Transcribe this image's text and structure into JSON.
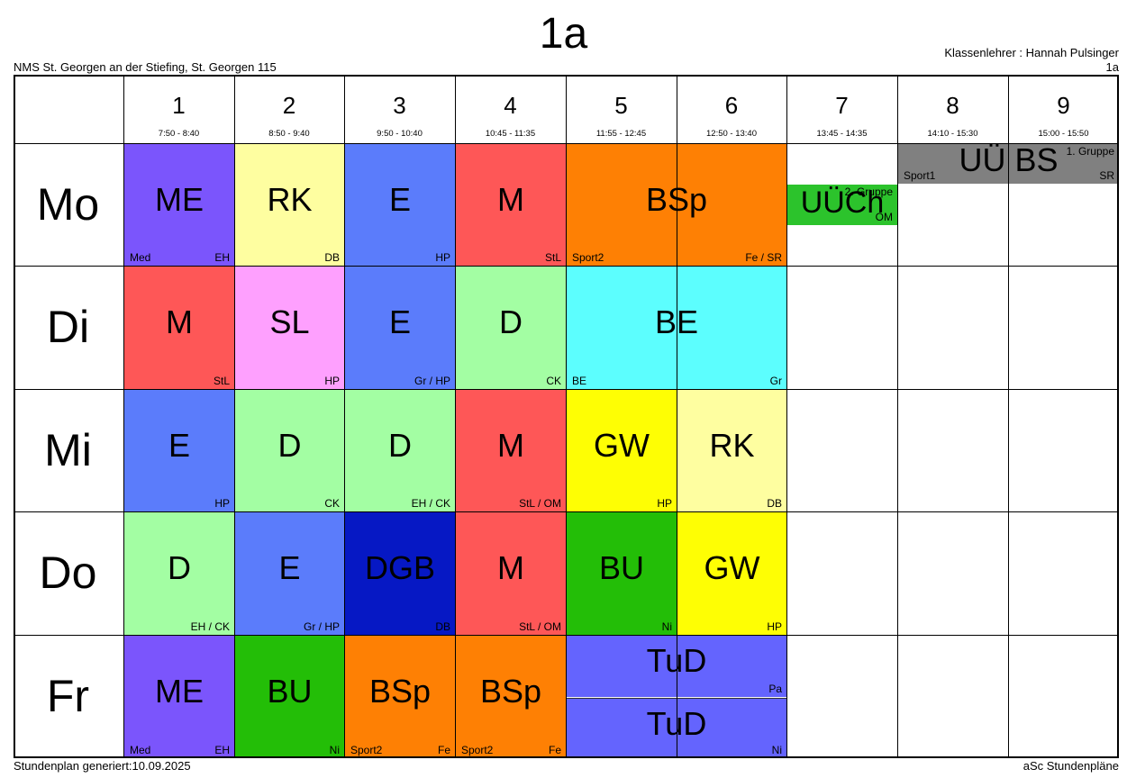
{
  "title": "1a",
  "school": "NMS St. Georgen an der Stiefing, St. Georgen 115",
  "teacher": "Klassenlehrer : Hannah Pulsinger",
  "class_code": "1a",
  "generated": "Stundenplan generiert:10.09.2025",
  "brand": "aSc Stundenpläne",
  "periods": [
    {
      "num": "1",
      "time": "7:50 - 8:40"
    },
    {
      "num": "2",
      "time": "8:50 - 9:40"
    },
    {
      "num": "3",
      "time": "9:50 - 10:40"
    },
    {
      "num": "4",
      "time": "10:45 - 11:35"
    },
    {
      "num": "5",
      "time": "11:55 - 12:45"
    },
    {
      "num": "6",
      "time": "12:50 - 13:40"
    },
    {
      "num": "7",
      "time": "13:45 - 14:35"
    },
    {
      "num": "8",
      "time": "14:10 - 15:30"
    },
    {
      "num": "9",
      "time": "15:00 - 15:50"
    }
  ],
  "days": [
    "Mo",
    "Di",
    "Mi",
    "Do",
    "Fr"
  ],
  "lessons": [
    {
      "day": 0,
      "start": 1,
      "span": 1,
      "subject": "ME",
      "teacher": "EH",
      "room": "Med",
      "color": "#7b55fc"
    },
    {
      "day": 0,
      "start": 2,
      "span": 1,
      "subject": "RK",
      "teacher": "DB",
      "room": "",
      "color": "#fefea0"
    },
    {
      "day": 0,
      "start": 3,
      "span": 1,
      "subject": "E",
      "teacher": "HP",
      "room": "",
      "color": "#5b7cfb"
    },
    {
      "day": 0,
      "start": 4,
      "span": 1,
      "subject": "M",
      "teacher": "StL",
      "room": "",
      "color": "#fe5757"
    },
    {
      "day": 0,
      "start": 5,
      "span": 2,
      "subject": "BSp",
      "teacher": "Fe / SR",
      "room": "Sport2",
      "color": "#fe8004"
    },
    {
      "day": 0,
      "start": 7,
      "span": 1,
      "part": "mid",
      "subject": "UÜCh",
      "teacher": "OM",
      "room": "",
      "group": "2. Gruppe",
      "color": "#2cc32c"
    },
    {
      "day": 0,
      "start": 8,
      "span": 2,
      "part": "top",
      "subject": "UÜ BS",
      "teacher": "SR",
      "room": "Sport1",
      "group": "1. Gruppe",
      "color": "#808080"
    },
    {
      "day": 1,
      "start": 1,
      "span": 1,
      "subject": "M",
      "teacher": "StL",
      "room": "",
      "color": "#fe5757"
    },
    {
      "day": 1,
      "start": 2,
      "span": 1,
      "subject": "SL",
      "teacher": "HP",
      "room": "",
      "color": "#fea0fe"
    },
    {
      "day": 1,
      "start": 3,
      "span": 1,
      "subject": "E",
      "teacher": "Gr / HP",
      "room": "",
      "color": "#5b7cfb"
    },
    {
      "day": 1,
      "start": 4,
      "span": 1,
      "subject": "D",
      "teacher": "CK",
      "room": "",
      "color": "#a3fea3"
    },
    {
      "day": 1,
      "start": 5,
      "span": 2,
      "subject": "BE",
      "teacher": "Gr",
      "room": "BE",
      "color": "#5cfefe"
    },
    {
      "day": 2,
      "start": 1,
      "span": 1,
      "subject": "E",
      "teacher": "HP",
      "room": "",
      "color": "#5b7cfb"
    },
    {
      "day": 2,
      "start": 2,
      "span": 1,
      "subject": "D",
      "teacher": "CK",
      "room": "",
      "color": "#a3fea3"
    },
    {
      "day": 2,
      "start": 3,
      "span": 1,
      "subject": "D",
      "teacher": "EH / CK",
      "room": "",
      "color": "#a3fea3"
    },
    {
      "day": 2,
      "start": 4,
      "span": 1,
      "subject": "M",
      "teacher": "StL / OM",
      "room": "",
      "color": "#fe5757"
    },
    {
      "day": 2,
      "start": 5,
      "span": 1,
      "subject": "GW",
      "teacher": "HP",
      "room": "",
      "color": "#fefe04"
    },
    {
      "day": 2,
      "start": 6,
      "span": 1,
      "subject": "RK",
      "teacher": "DB",
      "room": "",
      "color": "#fefea0"
    },
    {
      "day": 3,
      "start": 1,
      "span": 1,
      "subject": "D",
      "teacher": "EH / CK",
      "room": "",
      "color": "#a3fea3"
    },
    {
      "day": 3,
      "start": 2,
      "span": 1,
      "subject": "E",
      "teacher": "Gr / HP",
      "room": "",
      "color": "#5b7cfb"
    },
    {
      "day": 3,
      "start": 3,
      "span": 1,
      "subject": "DGB",
      "teacher": "DB",
      "room": "",
      "color": "#0618c4"
    },
    {
      "day": 3,
      "start": 4,
      "span": 1,
      "subject": "M",
      "teacher": "StL / OM",
      "room": "",
      "color": "#fe5757"
    },
    {
      "day": 3,
      "start": 5,
      "span": 1,
      "subject": "BU",
      "teacher": "Ni",
      "room": "",
      "color": "#23be07"
    },
    {
      "day": 3,
      "start": 6,
      "span": 1,
      "subject": "GW",
      "teacher": "HP",
      "room": "",
      "color": "#fefe04"
    },
    {
      "day": 4,
      "start": 1,
      "span": 1,
      "subject": "ME",
      "teacher": "EH",
      "room": "Med",
      "color": "#7b55fc"
    },
    {
      "day": 4,
      "start": 2,
      "span": 1,
      "subject": "BU",
      "teacher": "Ni",
      "room": "",
      "color": "#23be07"
    },
    {
      "day": 4,
      "start": 3,
      "span": 1,
      "subject": "BSp",
      "teacher": "Fe",
      "room": "Sport2",
      "color": "#fe8004"
    },
    {
      "day": 4,
      "start": 4,
      "span": 1,
      "subject": "BSp",
      "teacher": "Fe",
      "room": "Sport2",
      "color": "#fe8004"
    },
    {
      "day": 4,
      "start": 5,
      "span": 2,
      "part": "top-half",
      "subject": "TuD",
      "teacher": "Pa",
      "room": "",
      "color": "#6464fe"
    },
    {
      "day": 4,
      "start": 5,
      "span": 2,
      "part": "bottom-half",
      "subject": "TuD",
      "teacher": "Ni",
      "room": "",
      "color": "#6464fe"
    }
  ]
}
